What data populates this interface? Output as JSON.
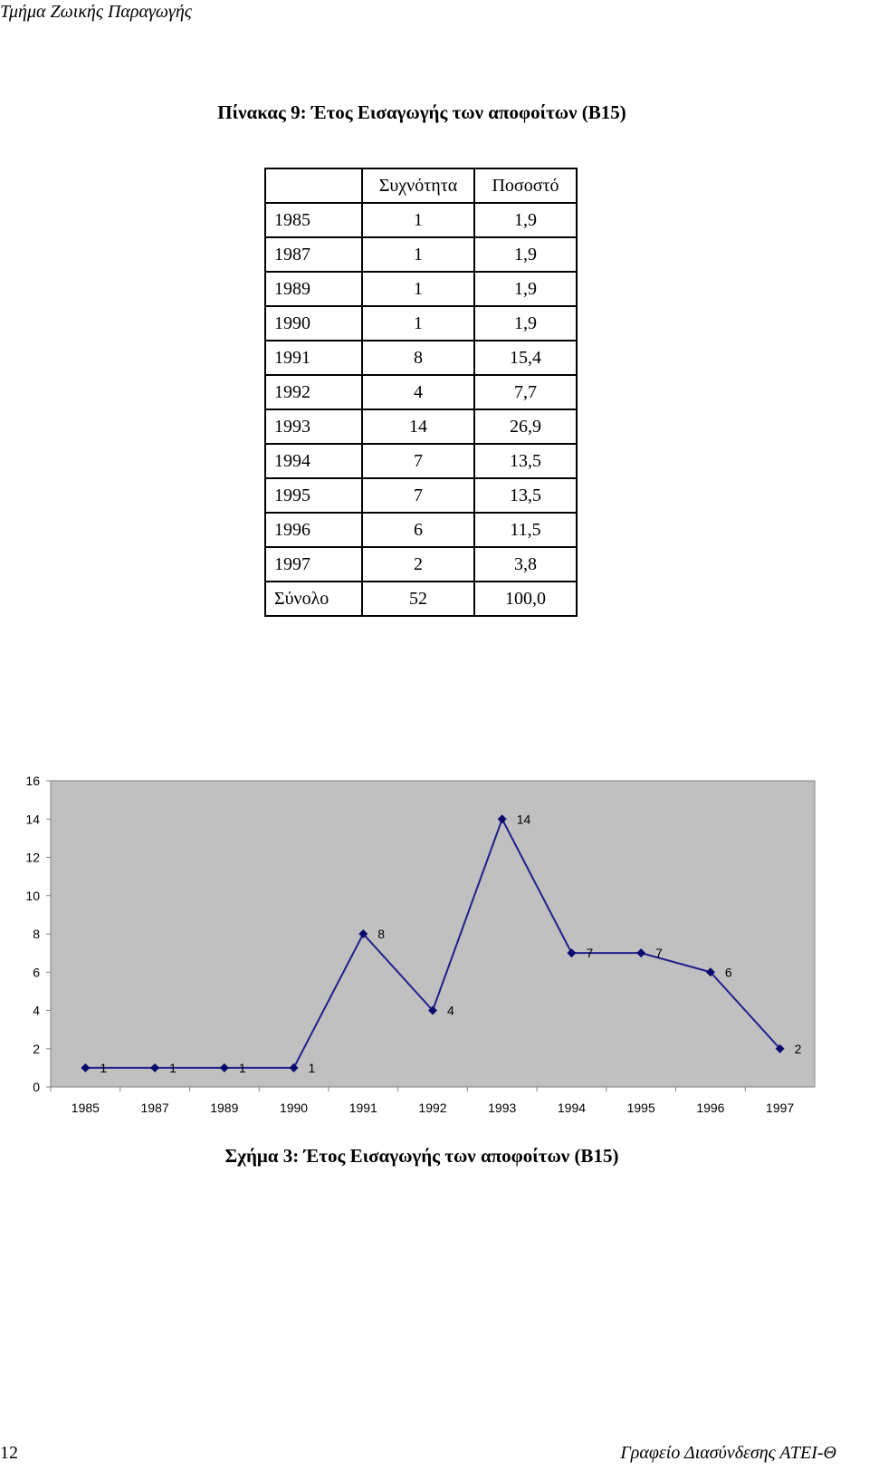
{
  "header": {
    "running_title": "Τμήμα Ζωικής Παραγωγής"
  },
  "table": {
    "title": "Πίνακας 9:  Έτος Εισαγωγής των αποφοίτων (Β15)",
    "columns": [
      "",
      "Συχνότητα",
      "Ποσοστό"
    ],
    "rows": [
      [
        "1985",
        "1",
        "1,9"
      ],
      [
        "1987",
        "1",
        "1,9"
      ],
      [
        "1989",
        "1",
        "1,9"
      ],
      [
        "1990",
        "1",
        "1,9"
      ],
      [
        "1991",
        "8",
        "15,4"
      ],
      [
        "1992",
        "4",
        "7,7"
      ],
      [
        "1993",
        "14",
        "26,9"
      ],
      [
        "1994",
        "7",
        "13,5"
      ],
      [
        "1995",
        "7",
        "13,5"
      ],
      [
        "1996",
        "6",
        "11,5"
      ],
      [
        "1997",
        "2",
        "3,8"
      ],
      [
        "Σύνολο",
        "52",
        "100,0"
      ]
    ]
  },
  "chart_data": {
    "type": "line",
    "title": "",
    "xlabel": "",
    "ylabel": "",
    "categories": [
      "1985",
      "1987",
      "1989",
      "1990",
      "1991",
      "1992",
      "1993",
      "1994",
      "1995",
      "1996",
      "1997"
    ],
    "series": [
      {
        "values": [
          1,
          1,
          1,
          1,
          8,
          4,
          14,
          7,
          7,
          6,
          2
        ]
      }
    ],
    "ylim": [
      0,
      16
    ],
    "yticks": [
      "0",
      "2",
      "4",
      "6",
      "8",
      "10",
      "12",
      "14",
      "16"
    ],
    "data_labels": true,
    "grid": false,
    "legend": "none",
    "colors": {
      "line": "#1f1f8a",
      "marker": "#0a0a6e",
      "plot_background": "#c0c0c0"
    }
  },
  "figure": {
    "caption": "Σχήμα 3: Έτος Εισαγωγής των αποφοίτων (Β15)"
  },
  "footer": {
    "page_number": "12",
    "office": "Γραφείο Διασύνδεσης ΑΤΕΙ-Θ"
  }
}
